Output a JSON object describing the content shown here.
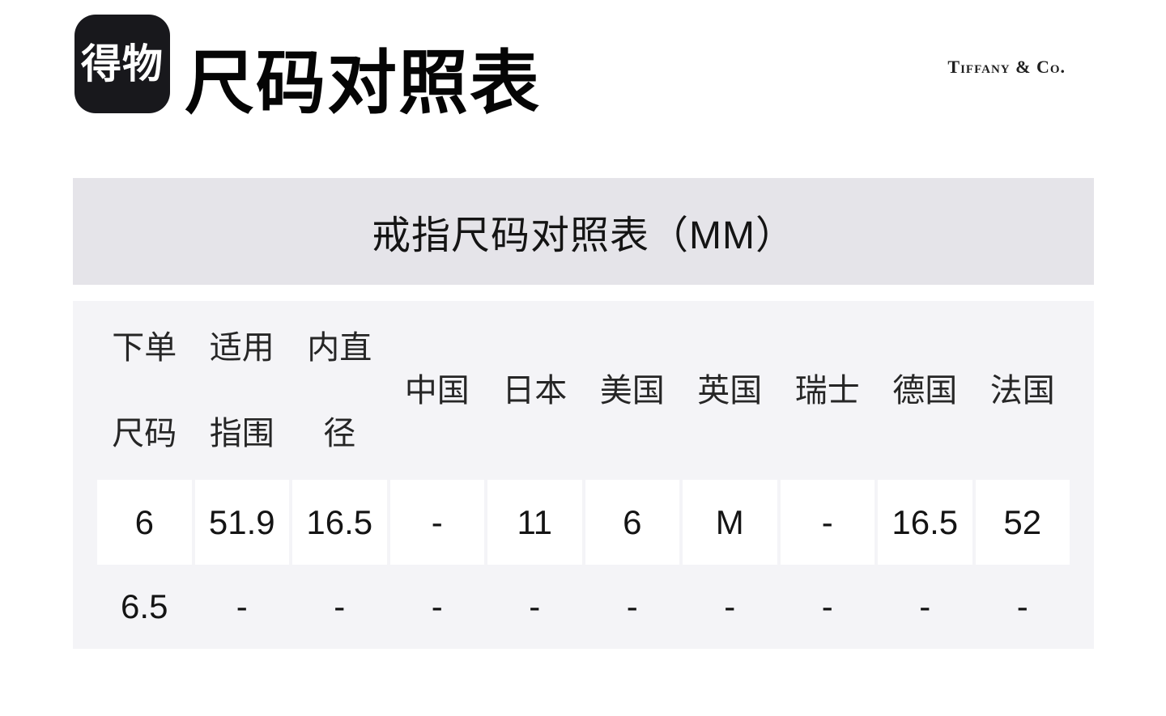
{
  "app": {
    "logo_text": "得物",
    "page_title": "尺码对照表",
    "brand_name": "Tiffany & Co."
  },
  "size_table": {
    "title": "戒指尺码对照表（MM）",
    "column_headers": [
      {
        "lines": [
          "下单",
          "尺码"
        ]
      },
      {
        "lines": [
          "适用",
          "指围"
        ]
      },
      {
        "lines": [
          "内直",
          "径"
        ]
      },
      {
        "lines": [
          "中国"
        ]
      },
      {
        "lines": [
          "日本"
        ]
      },
      {
        "lines": [
          "美国"
        ]
      },
      {
        "lines": [
          "英国"
        ]
      },
      {
        "lines": [
          "瑞士"
        ]
      },
      {
        "lines": [
          "德国"
        ]
      },
      {
        "lines": [
          "法国"
        ]
      }
    ],
    "rows": [
      {
        "highlighted": true,
        "cells": [
          "6",
          "51.9",
          "16.5",
          "-",
          "11",
          "6",
          "M",
          "-",
          "16.5",
          "52"
        ]
      },
      {
        "highlighted": false,
        "cells": [
          "6.5",
          "-",
          "-",
          "-",
          "-",
          "-",
          "-",
          "-",
          "-",
          "-"
        ]
      }
    ],
    "colors": {
      "band_bg": "#e5e4e9",
      "panel_bg": "#f4f4f7",
      "highlight_cell_bg": "#ffffff",
      "logo_bg": "#18181c",
      "text": "#141414"
    }
  }
}
